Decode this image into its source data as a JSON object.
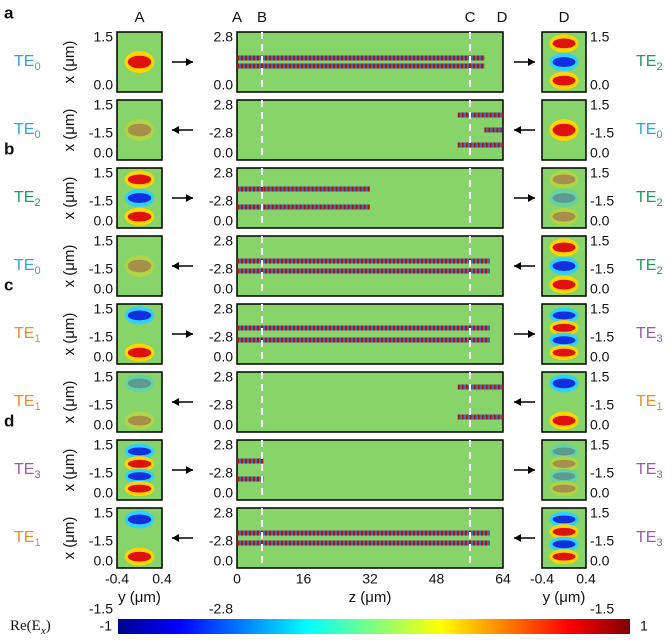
{
  "panel_letters": [
    "a",
    "b",
    "c",
    "d"
  ],
  "top_labels": {
    "left": "A",
    "middle": [
      "A",
      "B",
      "C",
      "D"
    ],
    "right": "D"
  },
  "rows": [
    {
      "left_mode": {
        "text": "TE",
        "subscript": "0"
      },
      "right_mode": {
        "text": "TE",
        "subscript": "2"
      }
    },
    {
      "left_mode": {
        "text": "TE",
        "subscript": "0"
      },
      "right_mode": {
        "text": "TE",
        "subscript": "0"
      }
    },
    {
      "left_mode": {
        "text": "TE",
        "subscript": "2"
      },
      "right_mode": {
        "text": "TE",
        "subscript": "2"
      }
    },
    {
      "left_mode": {
        "text": "TE",
        "subscript": "0"
      },
      "right_mode": {
        "text": "TE",
        "subscript": "2"
      }
    },
    {
      "left_mode": {
        "text": "TE",
        "subscript": "1"
      },
      "right_mode": {
        "text": "TE",
        "subscript": "3"
      }
    },
    {
      "left_mode": {
        "text": "TE",
        "subscript": "1"
      },
      "right_mode": {
        "text": "TE",
        "subscript": "1"
      }
    },
    {
      "left_mode": {
        "text": "TE",
        "subscript": "3"
      },
      "right_mode": {
        "text": "TE",
        "subscript": "3"
      }
    },
    {
      "left_mode": {
        "text": "TE",
        "subscript": "1"
      },
      "right_mode": {
        "text": "TE",
        "subscript": "3"
      }
    }
  ],
  "side_yticks": [
    "1.5",
    "0.0",
    "-1.5"
  ],
  "middle_yticks": [
    "2.8",
    "0.0",
    "-2.8"
  ],
  "y_axis_label": "x (μm)",
  "side_xticks": [
    "-0.4",
    "0.4"
  ],
  "side_xlabel": "y (μm)",
  "middle_xticks": [
    "0",
    "16",
    "32",
    "48",
    "64"
  ],
  "middle_xlabel": "z (μm)",
  "colorbar": {
    "label": {
      "text": "Re(E",
      "subscript": "x",
      "suffix": ")"
    },
    "min": "-1",
    "max": "1"
  }
}
